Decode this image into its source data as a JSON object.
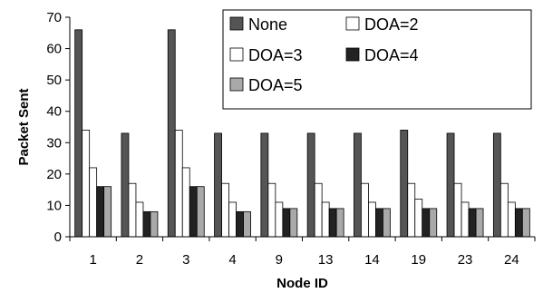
{
  "chart_data": {
    "type": "bar",
    "title": "",
    "xlabel": "Node ID",
    "ylabel": "Packet Sent",
    "ylim": [
      0,
      70
    ],
    "yticks": [
      0,
      10,
      20,
      30,
      40,
      50,
      60,
      70
    ],
    "grid": false,
    "legend": "top-right, inside plot",
    "categories": [
      "1",
      "2",
      "3",
      "4",
      "9",
      "13",
      "14",
      "19",
      "23",
      "24"
    ],
    "series": [
      {
        "name": "None",
        "color": "#555555",
        "values": [
          66,
          33,
          66,
          33,
          33,
          33,
          33,
          34,
          33,
          33
        ]
      },
      {
        "name": "DOA=2",
        "color": "#ffffff",
        "values": [
          34,
          17,
          34,
          17,
          17,
          17,
          17,
          17,
          17,
          17
        ]
      },
      {
        "name": "DOA=3",
        "color": "#ffffff",
        "values": [
          22,
          11,
          22,
          11,
          11,
          11,
          11,
          12,
          11,
          11
        ]
      },
      {
        "name": "DOA=4",
        "color": "#222222",
        "values": [
          16,
          8,
          16,
          8,
          9,
          9,
          9,
          9,
          9,
          9
        ]
      },
      {
        "name": "DOA=5",
        "color": "#a9a9a9",
        "values": [
          16,
          8,
          16,
          8,
          9,
          9,
          9,
          9,
          9,
          9
        ]
      }
    ]
  }
}
